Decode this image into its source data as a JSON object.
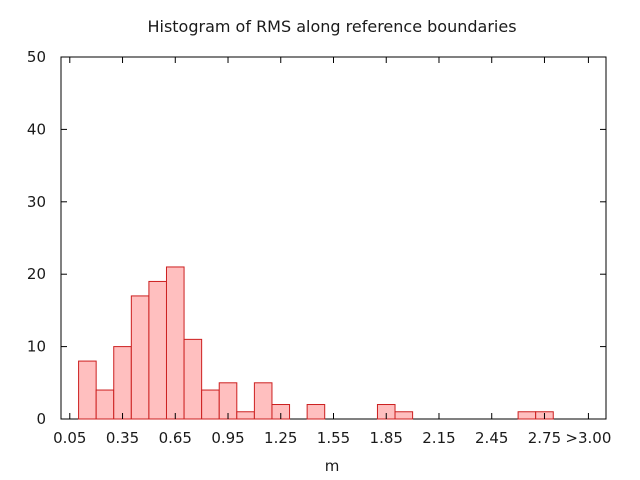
{
  "chart_data": {
    "type": "bar",
    "title": "Histogram of RMS along reference boundaries",
    "xlabel": "m",
    "ylabel": "",
    "ylim": [
      0,
      50
    ],
    "yticks": [
      "0",
      "10",
      "20",
      "30",
      "40",
      "50"
    ],
    "xlim": [
      0.0,
      3.1
    ],
    "xtick_values": [
      0.05,
      0.35,
      0.65,
      0.95,
      1.25,
      1.55,
      1.85,
      2.15,
      2.45,
      2.75,
      3.0
    ],
    "xticks": [
      "0.05",
      "0.35",
      "0.65",
      "0.95",
      "1.25",
      "1.55",
      "1.85",
      "2.15",
      "2.45",
      "2.75",
      ">3.00"
    ],
    "bin_width": 0.1,
    "bin_centers": [
      0.15,
      0.25,
      0.35,
      0.45,
      0.55,
      0.65,
      0.75,
      0.85,
      0.95,
      1.05,
      1.15,
      1.25,
      1.35,
      1.45,
      1.55,
      1.65,
      1.75,
      1.85,
      1.95,
      2.05,
      2.15,
      2.25,
      2.35,
      2.45,
      2.55,
      2.65,
      2.75,
      2.85,
      2.95
    ],
    "values": [
      8,
      4,
      10,
      17,
      19,
      21,
      11,
      4,
      5,
      1,
      5,
      2,
      0,
      2,
      0,
      0,
      0,
      2,
      1,
      0,
      0,
      0,
      0,
      0,
      0,
      1,
      1,
      0,
      0
    ],
    "grid": false,
    "bar_fill": "#ffbfbf",
    "bar_stroke": "#cc1f1f",
    "axis_color": "#000000"
  }
}
